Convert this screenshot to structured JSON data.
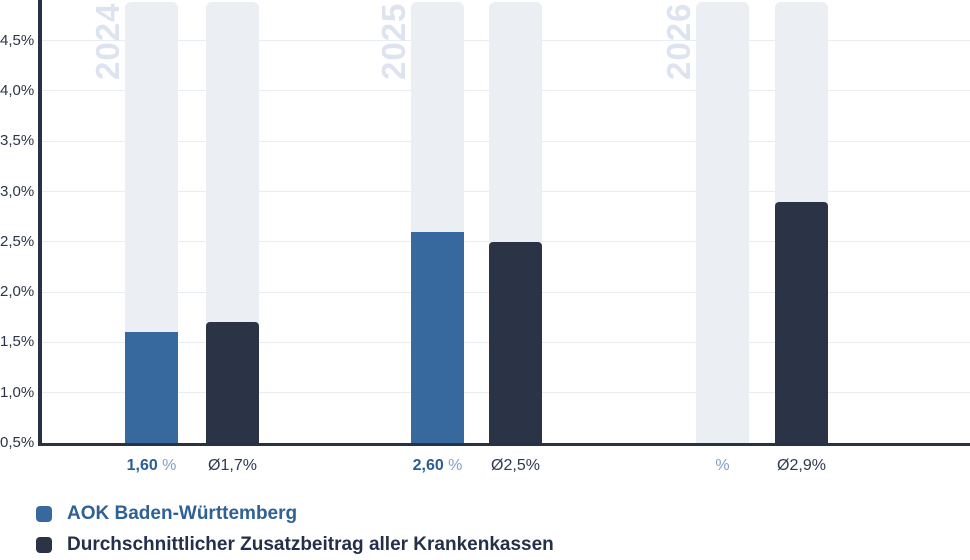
{
  "colors": {
    "blue": "#37699E",
    "dark_navy": "#2B3447",
    "column_bg": "#EBEFF4",
    "gridline": "#E8EDF3",
    "axis": "#273246",
    "watermark": "#DDE4EF",
    "label_blue_strong": "#2C5E92",
    "label_blue_light": "#7F9FC5",
    "label_dark": "#2E3950",
    "tick_text": "#2B3447",
    "legend_blue_text": "#2F6195",
    "legend_dark_text": "#243049"
  },
  "chart_data": {
    "type": "bar",
    "categories": [
      "2024",
      "2025",
      "2026"
    ],
    "series": [
      {
        "name": "AOK Baden-Württemberg",
        "color_key": "blue",
        "values": [
          1.6,
          2.6,
          null
        ],
        "value_labels": [
          {
            "strong": "1,60",
            "suffix": " %"
          },
          {
            "strong": "2,60",
            "suffix": " %"
          },
          {
            "strong": "",
            "suffix": "%"
          }
        ],
        "rounded_top": false
      },
      {
        "name": "Durchschnittlicher Zusatzbeitrag aller Krankenkassen",
        "color_key": "dark_navy",
        "values": [
          1.7,
          2.5,
          2.9
        ],
        "value_labels": [
          {
            "strong": "",
            "suffix": "Ø1,7%"
          },
          {
            "strong": "",
            "suffix": "Ø2,5%"
          },
          {
            "strong": "",
            "suffix": "Ø2,9%"
          }
        ],
        "rounded_top": true
      }
    ],
    "y_ticks": [
      {
        "label": "4,5%",
        "value": 4.5
      },
      {
        "label": "4,0%",
        "value": 4.0
      },
      {
        "label": "3,5%",
        "value": 3.5
      },
      {
        "label": "3,0%",
        "value": 3.0
      },
      {
        "label": "2,5%",
        "value": 2.5
      },
      {
        "label": "2,0%",
        "value": 2.0
      },
      {
        "label": "1,5%",
        "value": 1.5
      },
      {
        "label": "1,0%",
        "value": 1.0
      },
      {
        "label": "0,5%",
        "value": 0.5
      }
    ],
    "ylim": [
      0.5,
      4.9
    ],
    "grid": true,
    "unit": "%",
    "legend_position": "bottom-left"
  },
  "legend": {
    "items": [
      {
        "label": "AOK Baden-Württemberg"
      },
      {
        "label": "Durchschnittlicher Zusatzbeitrag aller Krankenkassen"
      }
    ]
  }
}
